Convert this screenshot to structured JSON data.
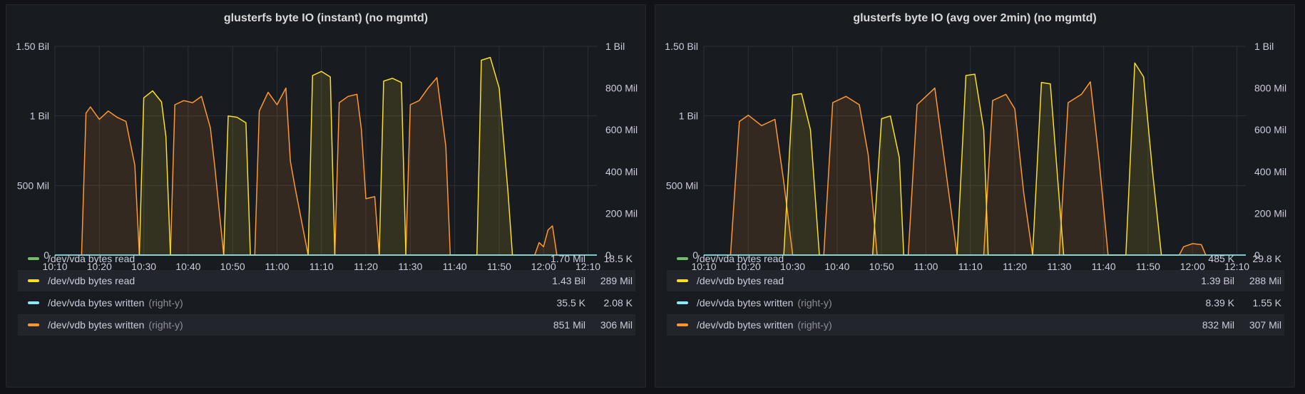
{
  "panels": [
    {
      "title": "glusterfs byte IO (instant) (no mgmtd)",
      "left_axis": [
        "0",
        "500 Mil",
        "1 Bil",
        "1.50 Bil"
      ],
      "right_axis": [
        "0",
        "200 Mil",
        "400 Mil",
        "600 Mil",
        "800 Mil",
        "1 Bil"
      ],
      "x_ticks": [
        "10:10",
        "10:20",
        "10:30",
        "10:40",
        "10:50",
        "11:00",
        "11:10",
        "11:20",
        "11:30",
        "11:40",
        "11:50",
        "12:00",
        "12:10"
      ],
      "legend_headers": {
        "max": "max",
        "avg": "avg"
      },
      "legend": [
        {
          "name": "/dev/vda bytes read",
          "suffix": "",
          "max": "1.70 Mil",
          "avg": "18.5 K",
          "color": "#73bf69"
        },
        {
          "name": "/dev/vdb bytes read",
          "suffix": "",
          "max": "1.43 Bil",
          "avg": "289 Mil",
          "color": "#fade2a"
        },
        {
          "name": "/dev/vda bytes written",
          "suffix": "(right-y)",
          "max": "35.5 K",
          "avg": "2.08 K",
          "color": "#8ae9f8"
        },
        {
          "name": "/dev/vdb bytes written",
          "suffix": "(right-y)",
          "max": "851 Mil",
          "avg": "306 Mil",
          "color": "#ff9830"
        }
      ]
    },
    {
      "title": "glusterfs byte IO (avg over 2min) (no mgmtd)",
      "left_axis": [
        "0",
        "500 Mil",
        "1 Bil",
        "1.50 Bil"
      ],
      "right_axis": [
        "0",
        "200 Mil",
        "400 Mil",
        "600 Mil",
        "800 Mil",
        "1 Bil"
      ],
      "x_ticks": [
        "10:10",
        "10:20",
        "10:30",
        "10:40",
        "10:50",
        "11:00",
        "11:10",
        "11:20",
        "11:30",
        "11:40",
        "11:50",
        "12:00",
        "12:10"
      ],
      "legend_headers": {
        "max": "max",
        "avg": "avg"
      },
      "legend": [
        {
          "name": "/dev/vda bytes read",
          "suffix": "",
          "max": "485 K",
          "avg": "29.8 K",
          "color": "#73bf69"
        },
        {
          "name": "/dev/vdb bytes read",
          "suffix": "",
          "max": "1.39 Bil",
          "avg": "288 Mil",
          "color": "#fade2a"
        },
        {
          "name": "/dev/vda bytes written",
          "suffix": "(right-y)",
          "max": "8.39 K",
          "avg": "1.55 K",
          "color": "#8ae9f8"
        },
        {
          "name": "/dev/vdb bytes written",
          "suffix": "(right-y)",
          "max": "832 Mil",
          "avg": "307 Mil",
          "color": "#ff9830"
        }
      ]
    }
  ],
  "chart_data": [
    {
      "type": "area",
      "title": "glusterfs byte IO (instant) (no mgmtd)",
      "x_unit": "time (HH:MM)",
      "ylim_left": [
        0,
        1500000000
      ],
      "ylim_right": [
        0,
        1000000000
      ],
      "series": [
        {
          "name": "/dev/vdb bytes written",
          "axis": "right",
          "color": "#ff9830",
          "points": [
            [
              "10:16",
              0
            ],
            [
              "10:17",
              680000000
            ],
            [
              "10:18",
              710000000
            ],
            [
              "10:20",
              650000000
            ],
            [
              "10:22",
              690000000
            ],
            [
              "10:24",
              660000000
            ],
            [
              "10:26",
              640000000
            ],
            [
              "10:28",
              430000000
            ],
            [
              "10:29",
              0
            ],
            [
              "10:36",
              0
            ],
            [
              "10:37",
              720000000
            ],
            [
              "10:39",
              740000000
            ],
            [
              "10:41",
              730000000
            ],
            [
              "10:43",
              760000000
            ],
            [
              "10:45",
              610000000
            ],
            [
              "10:46",
              420000000
            ],
            [
              "10:48",
              0
            ],
            [
              "10:55",
              0
            ],
            [
              "10:56",
              690000000
            ],
            [
              "10:58",
              780000000
            ],
            [
              "11:00",
              720000000
            ],
            [
              "11:02",
              800000000
            ],
            [
              "11:03",
              450000000
            ],
            [
              "11:04",
              330000000
            ],
            [
              "11:07",
              0
            ],
            [
              "11:13",
              0
            ],
            [
              "11:14",
              730000000
            ],
            [
              "11:16",
              760000000
            ],
            [
              "11:18",
              770000000
            ],
            [
              "11:19",
              600000000
            ],
            [
              "11:20",
              270000000
            ],
            [
              "11:22",
              280000000
            ],
            [
              "11:23",
              0
            ],
            [
              "11:29",
              0
            ],
            [
              "11:30",
              720000000
            ],
            [
              "11:32",
              740000000
            ],
            [
              "11:34",
              800000000
            ],
            [
              "11:36",
              850000000
            ],
            [
              "11:38",
              520000000
            ],
            [
              "11:39",
              0
            ],
            [
              "11:58",
              0
            ],
            [
              "11:59",
              60000000
            ],
            [
              "12:00",
              40000000
            ],
            [
              "12:01",
              120000000
            ],
            [
              "12:02",
              140000000
            ],
            [
              "12:03",
              0
            ]
          ]
        },
        {
          "name": "/dev/vdb bytes read",
          "axis": "left",
          "color": "#fade2a",
          "points": [
            [
              "10:29",
              0
            ],
            [
              "10:30",
              1130000000
            ],
            [
              "10:32",
              1180000000
            ],
            [
              "10:34",
              1100000000
            ],
            [
              "10:35",
              850000000
            ],
            [
              "10:36",
              0
            ],
            [
              "10:48",
              0
            ],
            [
              "10:49",
              1000000000
            ],
            [
              "10:51",
              990000000
            ],
            [
              "10:53",
              950000000
            ],
            [
              "10:54",
              0
            ],
            [
              "11:07",
              0
            ],
            [
              "11:08",
              1290000000
            ],
            [
              "11:10",
              1320000000
            ],
            [
              "11:12",
              1280000000
            ],
            [
              "11:13",
              0
            ],
            [
              "11:23",
              0
            ],
            [
              "11:24",
              1250000000
            ],
            [
              "11:26",
              1270000000
            ],
            [
              "11:28",
              1240000000
            ],
            [
              "11:29",
              0
            ],
            [
              "11:45",
              0
            ],
            [
              "11:46",
              1400000000
            ],
            [
              "11:48",
              1420000000
            ],
            [
              "11:50",
              1200000000
            ],
            [
              "11:52",
              450000000
            ],
            [
              "11:53",
              0
            ]
          ]
        },
        {
          "name": "/dev/vda bytes read",
          "axis": "left",
          "color": "#73bf69",
          "points": [
            [
              "10:10",
              0
            ],
            [
              "12:12",
              0
            ]
          ]
        },
        {
          "name": "/dev/vda bytes written",
          "axis": "right",
          "color": "#8ae9f8",
          "points": [
            [
              "10:10",
              0
            ],
            [
              "12:12",
              0
            ]
          ]
        }
      ]
    },
    {
      "type": "area",
      "title": "glusterfs byte IO (avg over 2min) (no mgmtd)",
      "x_unit": "time (HH:MM)",
      "ylim_left": [
        0,
        1500000000
      ],
      "ylim_right": [
        0,
        1000000000
      ],
      "series": [
        {
          "name": "/dev/vdb bytes written",
          "axis": "right",
          "color": "#ff9830",
          "points": [
            [
              "10:16",
              0
            ],
            [
              "10:18",
              640000000
            ],
            [
              "10:20",
              670000000
            ],
            [
              "10:23",
              620000000
            ],
            [
              "10:26",
              650000000
            ],
            [
              "10:28",
              350000000
            ],
            [
              "10:30",
              0
            ],
            [
              "10:37",
              0
            ],
            [
              "10:39",
              730000000
            ],
            [
              "10:42",
              760000000
            ],
            [
              "10:45",
              720000000
            ],
            [
              "10:47",
              480000000
            ],
            [
              "10:49",
              0
            ],
            [
              "10:56",
              0
            ],
            [
              "10:58",
              720000000
            ],
            [
              "11:00",
              760000000
            ],
            [
              "11:02",
              800000000
            ],
            [
              "11:04",
              480000000
            ],
            [
              "11:07",
              0
            ],
            [
              "11:13",
              0
            ],
            [
              "11:15",
              740000000
            ],
            [
              "11:18",
              770000000
            ],
            [
              "11:20",
              700000000
            ],
            [
              "11:22",
              300000000
            ],
            [
              "11:24",
              0
            ],
            [
              "11:30",
              0
            ],
            [
              "11:32",
              730000000
            ],
            [
              "11:35",
              770000000
            ],
            [
              "11:37",
              830000000
            ],
            [
              "11:39",
              450000000
            ],
            [
              "11:41",
              0
            ],
            [
              "11:57",
              0
            ],
            [
              "11:58",
              40000000
            ],
            [
              "12:00",
              55000000
            ],
            [
              "12:02",
              50000000
            ],
            [
              "12:03",
              0
            ]
          ]
        },
        {
          "name": "/dev/vdb bytes read",
          "axis": "left",
          "color": "#fade2a",
          "points": [
            [
              "10:28",
              0
            ],
            [
              "10:30",
              1150000000
            ],
            [
              "10:32",
              1160000000
            ],
            [
              "10:34",
              900000000
            ],
            [
              "10:36",
              0
            ],
            [
              "10:48",
              0
            ],
            [
              "10:50",
              980000000
            ],
            [
              "10:52",
              1000000000
            ],
            [
              "10:54",
              700000000
            ],
            [
              "10:55",
              0
            ],
            [
              "11:07",
              0
            ],
            [
              "11:09",
              1290000000
            ],
            [
              "11:11",
              1300000000
            ],
            [
              "11:13",
              900000000
            ],
            [
              "11:14",
              0
            ],
            [
              "11:24",
              0
            ],
            [
              "11:26",
              1240000000
            ],
            [
              "11:28",
              1230000000
            ],
            [
              "11:30",
              400000000
            ],
            [
              "11:31",
              0
            ],
            [
              "11:45",
              0
            ],
            [
              "11:47",
              1380000000
            ],
            [
              "11:49",
              1280000000
            ],
            [
              "11:51",
              600000000
            ],
            [
              "11:53",
              0
            ]
          ]
        },
        {
          "name": "/dev/vda bytes read",
          "axis": "left",
          "color": "#73bf69",
          "points": [
            [
              "10:10",
              0
            ],
            [
              "12:12",
              0
            ]
          ]
        },
        {
          "name": "/dev/vda bytes written",
          "axis": "right",
          "color": "#8ae9f8",
          "points": [
            [
              "10:10",
              0
            ],
            [
              "12:12",
              0
            ]
          ]
        }
      ]
    }
  ]
}
